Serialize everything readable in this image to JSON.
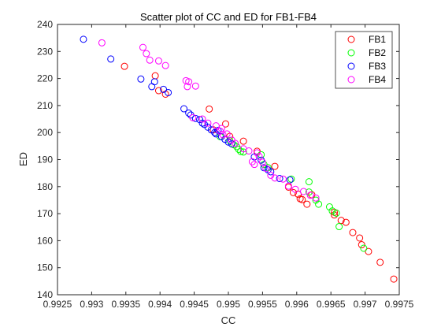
{
  "chart_data": {
    "type": "scatter",
    "title": "Scatter plot of CC and ED for FB1-FB4",
    "xlabel": "CC",
    "ylabel": "ED",
    "xlim": [
      0.9925,
      0.9975
    ],
    "ylim": [
      140,
      240
    ],
    "xticks": [
      0.9925,
      0.993,
      0.9935,
      0.994,
      0.9945,
      0.995,
      0.9955,
      0.996,
      0.9965,
      0.997,
      0.9975
    ],
    "yticks": [
      140,
      150,
      160,
      170,
      180,
      190,
      200,
      210,
      220,
      230,
      240
    ],
    "xtick_labels": [
      "0.9925",
      "0.993",
      "0.9935",
      "0.994",
      "0.9945",
      "0.995",
      "0.9955",
      "0.996",
      "0.9965",
      "0.997",
      "0.9975"
    ],
    "ytick_labels": [
      "140",
      "150",
      "160",
      "170",
      "180",
      "190",
      "200",
      "210",
      "220",
      "230",
      "240"
    ],
    "grid": false,
    "legend_position": "top-right",
    "marker": "open-circle",
    "series": [
      {
        "name": "FB1",
        "color": "#ff0000",
        "points": [
          [
            0.99348,
            224.5
          ],
          [
            0.99393,
            221.0
          ],
          [
            0.99398,
            215.5
          ],
          [
            0.99408,
            214.2
          ],
          [
            0.99472,
            208.7
          ],
          [
            0.99478,
            201.0
          ],
          [
            0.99496,
            203.2
          ],
          [
            0.99502,
            198.6
          ],
          [
            0.99522,
            196.8
          ],
          [
            0.99542,
            193.1
          ],
          [
            0.99568,
            187.5
          ],
          [
            0.99588,
            179.8
          ],
          [
            0.99595,
            177.8
          ],
          [
            0.99602,
            177.2
          ],
          [
            0.99605,
            175.5
          ],
          [
            0.99608,
            175.2
          ],
          [
            0.99615,
            173.5
          ],
          [
            0.99622,
            177.0
          ],
          [
            0.99655,
            170.5
          ],
          [
            0.99655,
            169.5
          ],
          [
            0.99665,
            167.5
          ],
          [
            0.99672,
            166.8
          ],
          [
            0.99682,
            163.0
          ],
          [
            0.99692,
            161.0
          ],
          [
            0.99695,
            158.5
          ],
          [
            0.99705,
            156.0
          ],
          [
            0.99722,
            152.0
          ],
          [
            0.99742,
            145.8
          ]
        ]
      },
      {
        "name": "FB2",
        "color": "#00ff00",
        "points": [
          [
            0.99488,
            198.5
          ],
          [
            0.99502,
            197.0
          ],
          [
            0.99508,
            195.5
          ],
          [
            0.99512,
            194.8
          ],
          [
            0.99515,
            193.8
          ],
          [
            0.99518,
            193.0
          ],
          [
            0.99522,
            192.8
          ],
          [
            0.99548,
            191.8
          ],
          [
            0.99552,
            188.2
          ],
          [
            0.99558,
            187.0
          ],
          [
            0.99592,
            182.8
          ],
          [
            0.99618,
            181.8
          ],
          [
            0.99618,
            178.0
          ],
          [
            0.99628,
            175.0
          ],
          [
            0.99632,
            173.5
          ],
          [
            0.99648,
            172.5
          ],
          [
            0.99652,
            171.0
          ],
          [
            0.99658,
            170.2
          ],
          [
            0.99662,
            165.2
          ],
          [
            0.99698,
            157.2
          ]
        ]
      },
      {
        "name": "FB3",
        "color": "#0000ff",
        "points": [
          [
            0.99288,
            234.5
          ],
          [
            0.99328,
            227.2
          ],
          [
            0.99372,
            219.8
          ],
          [
            0.99388,
            217.0
          ],
          [
            0.99392,
            218.8
          ],
          [
            0.99405,
            216.0
          ],
          [
            0.99412,
            214.8
          ],
          [
            0.99435,
            208.8
          ],
          [
            0.99442,
            207.2
          ],
          [
            0.99445,
            206.5
          ],
          [
            0.99452,
            205.2
          ],
          [
            0.99458,
            204.8
          ],
          [
            0.99462,
            203.5
          ],
          [
            0.99465,
            203.0
          ],
          [
            0.9947,
            202.0
          ],
          [
            0.99475,
            201.0
          ],
          [
            0.9948,
            200.0
          ],
          [
            0.99482,
            199.5
          ],
          [
            0.99485,
            200.8
          ],
          [
            0.9949,
            198.5
          ],
          [
            0.99495,
            197.5
          ],
          [
            0.995,
            196.5
          ],
          [
            0.99505,
            195.8
          ],
          [
            0.99538,
            191.0
          ],
          [
            0.99548,
            189.8
          ],
          [
            0.99552,
            187.0
          ],
          [
            0.99558,
            186.2
          ],
          [
            0.99562,
            185.5
          ],
          [
            0.99575,
            183.0
          ],
          [
            0.9959,
            182.5
          ]
        ]
      },
      {
        "name": "FB4",
        "color": "#ff00ff",
        "points": [
          [
            0.99315,
            233.2
          ],
          [
            0.99375,
            231.5
          ],
          [
            0.9938,
            229.2
          ],
          [
            0.99385,
            226.8
          ],
          [
            0.99398,
            226.5
          ],
          [
            0.99408,
            224.8
          ],
          [
            0.99438,
            219.2
          ],
          [
            0.99442,
            218.8
          ],
          [
            0.9944,
            217.0
          ],
          [
            0.99452,
            217.2
          ],
          [
            0.99448,
            205.5
          ],
          [
            0.99462,
            205.0
          ],
          [
            0.9947,
            203.5
          ],
          [
            0.99482,
            202.5
          ],
          [
            0.9949,
            201.5
          ],
          [
            0.99488,
            200.5
          ],
          [
            0.99492,
            199.2
          ],
          [
            0.99498,
            199.5
          ],
          [
            0.99505,
            197.2
          ],
          [
            0.9951,
            196.0
          ],
          [
            0.99522,
            194.0
          ],
          [
            0.9953,
            193.2
          ],
          [
            0.99542,
            192.5
          ],
          [
            0.99545,
            191.2
          ],
          [
            0.99535,
            189.2
          ],
          [
            0.99538,
            188.2
          ],
          [
            0.9955,
            189.0
          ],
          [
            0.99555,
            186.8
          ],
          [
            0.99562,
            184.2
          ],
          [
            0.99568,
            183.2
          ],
          [
            0.9958,
            182.8
          ],
          [
            0.99588,
            180.2
          ],
          [
            0.99598,
            179.0
          ],
          [
            0.9961,
            178.2
          ],
          [
            0.9962,
            176.8
          ],
          [
            0.99628,
            175.8
          ]
        ]
      }
    ]
  }
}
